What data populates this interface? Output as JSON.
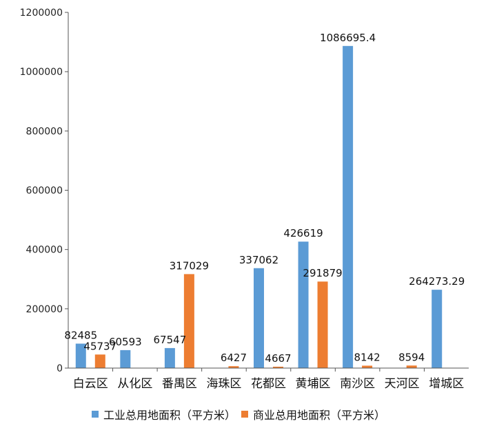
{
  "chart_data": {
    "type": "bar",
    "categories": [
      "白云区",
      "从化区",
      "番禺区",
      "海珠区",
      "花都区",
      "黄埔区",
      "南沙区",
      "天河区",
      "增城区"
    ],
    "series": [
      {
        "name": "工业总用地面积（平方米）",
        "color": "#5b9bd5",
        "values": [
          82485,
          60593,
          67547,
          null,
          337062,
          426619,
          1086695.4,
          null,
          264273.29
        ],
        "labels": [
          "82485",
          "60593",
          "67547",
          "",
          "337062",
          "426619",
          "1086695.4",
          "",
          "264273.29"
        ]
      },
      {
        "name": "商业总用地面积（平方米）",
        "color": "#ed7d31",
        "values": [
          45737,
          null,
          317029,
          6427,
          4667,
          291879,
          8142,
          8594,
          null
        ],
        "labels": [
          "45737",
          "",
          "317029",
          "6427",
          "4667",
          "291879",
          "8142",
          "8594",
          ""
        ]
      }
    ],
    "yticks": [
      "0",
      "200000",
      "400000",
      "600000",
      "800000",
      "1000000",
      "1200000"
    ],
    "ylim": [
      0,
      1200000
    ],
    "grid": false,
    "legend_position": "bottom"
  }
}
